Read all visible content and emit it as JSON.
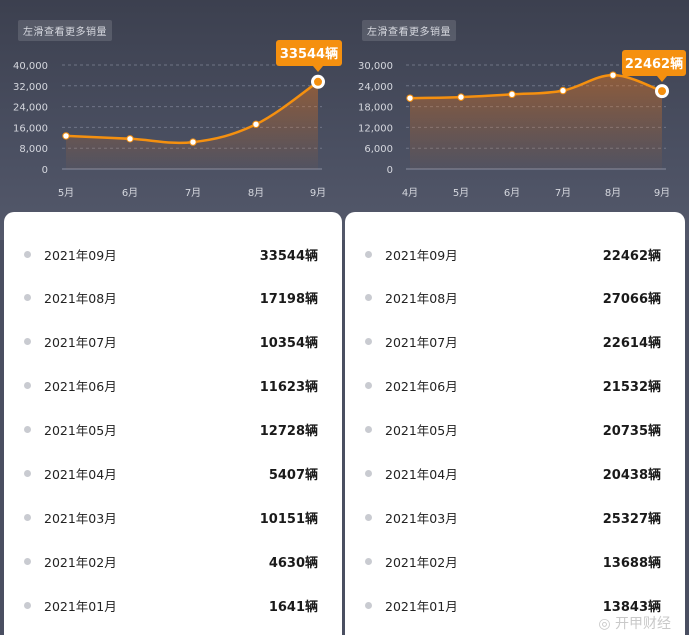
{
  "watermark": "◎ 开甲财经",
  "accent_color": "#f5900f",
  "left": {
    "hint": "左滑查看更多销量",
    "chart_data": {
      "type": "line",
      "x": [
        "5月",
        "6月",
        "7月",
        "8月",
        "9月"
      ],
      "values": [
        12728,
        11623,
        10354,
        17198,
        33544
      ],
      "yticks": [
        "0",
        "8,000",
        "16,000",
        "24,000",
        "32,000",
        "40,000"
      ],
      "ylim": [
        0,
        40000
      ],
      "highlight_label": "33544辆"
    },
    "list": [
      {
        "month": "2021年09月",
        "value": "33544辆"
      },
      {
        "month": "2021年08月",
        "value": "17198辆"
      },
      {
        "month": "2021年07月",
        "value": "10354辆"
      },
      {
        "month": "2021年06月",
        "value": "11623辆"
      },
      {
        "month": "2021年05月",
        "value": "12728辆"
      },
      {
        "month": "2021年04月",
        "value": "5407辆"
      },
      {
        "month": "2021年03月",
        "value": "10151辆"
      },
      {
        "month": "2021年02月",
        "value": "4630辆"
      },
      {
        "month": "2021年01月",
        "value": "1641辆"
      }
    ]
  },
  "right": {
    "hint": "左滑查看更多销量",
    "chart_data": {
      "type": "line",
      "x": [
        "4月",
        "5月",
        "6月",
        "7月",
        "8月",
        "9月"
      ],
      "values": [
        20438,
        20735,
        21532,
        22614,
        27066,
        22462
      ],
      "yticks": [
        "0",
        "6,000",
        "12,000",
        "18,000",
        "24,000",
        "30,000"
      ],
      "ylim": [
        0,
        30000
      ],
      "highlight_label": "22462辆"
    },
    "list": [
      {
        "month": "2021年09月",
        "value": "22462辆"
      },
      {
        "month": "2021年08月",
        "value": "27066辆"
      },
      {
        "month": "2021年07月",
        "value": "22614辆"
      },
      {
        "month": "2021年06月",
        "value": "21532辆"
      },
      {
        "month": "2021年05月",
        "value": "20735辆"
      },
      {
        "month": "2021年04月",
        "value": "20438辆"
      },
      {
        "month": "2021年03月",
        "value": "25327辆"
      },
      {
        "month": "2021年02月",
        "value": "13688辆"
      },
      {
        "month": "2021年01月",
        "value": "13843辆"
      }
    ]
  }
}
